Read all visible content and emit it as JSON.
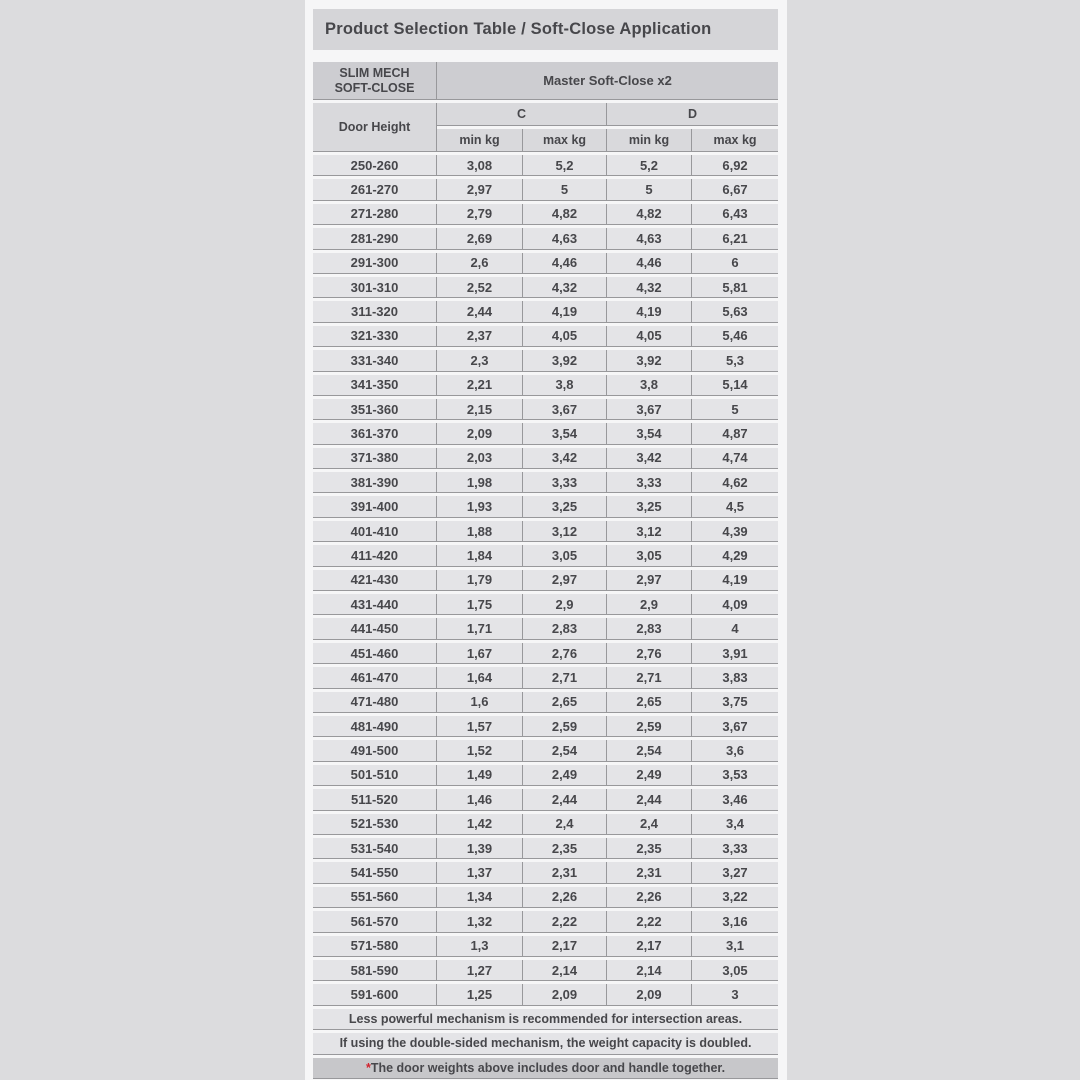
{
  "title": "Product Selection Table / Soft-Close Application",
  "header": {
    "product_line1": "SLIM MECH",
    "product_line2": "SOFT-CLOSE",
    "master_title": "Master Soft-Close x2",
    "door_height_label": "Door Height",
    "group_c_label": "C",
    "group_d_label": "D",
    "c_min_label": "min kg",
    "c_max_label": "max kg",
    "d_min_label": "min kg",
    "d_max_label": "max kg"
  },
  "table": {
    "columns": [
      "Door Height",
      "C min kg",
      "C max kg",
      "D min kg",
      "D max kg"
    ],
    "rows": [
      [
        "250-260",
        "3,08",
        "5,2",
        "5,2",
        "6,92"
      ],
      [
        "261-270",
        "2,97",
        "5",
        "5",
        "6,67"
      ],
      [
        "271-280",
        "2,79",
        "4,82",
        "4,82",
        "6,43"
      ],
      [
        "281-290",
        "2,69",
        "4,63",
        "4,63",
        "6,21"
      ],
      [
        "291-300",
        "2,6",
        "4,46",
        "4,46",
        "6"
      ],
      [
        "301-310",
        "2,52",
        "4,32",
        "4,32",
        "5,81"
      ],
      [
        "311-320",
        "2,44",
        "4,19",
        "4,19",
        "5,63"
      ],
      [
        "321-330",
        "2,37",
        "4,05",
        "4,05",
        "5,46"
      ],
      [
        "331-340",
        "2,3",
        "3,92",
        "3,92",
        "5,3"
      ],
      [
        "341-350",
        "2,21",
        "3,8",
        "3,8",
        "5,14"
      ],
      [
        "351-360",
        "2,15",
        "3,67",
        "3,67",
        "5"
      ],
      [
        "361-370",
        "2,09",
        "3,54",
        "3,54",
        "4,87"
      ],
      [
        "371-380",
        "2,03",
        "3,42",
        "3,42",
        "4,74"
      ],
      [
        "381-390",
        "1,98",
        "3,33",
        "3,33",
        "4,62"
      ],
      [
        "391-400",
        "1,93",
        "3,25",
        "3,25",
        "4,5"
      ],
      [
        "401-410",
        "1,88",
        "3,12",
        "3,12",
        "4,39"
      ],
      [
        "411-420",
        "1,84",
        "3,05",
        "3,05",
        "4,29"
      ],
      [
        "421-430",
        "1,79",
        "2,97",
        "2,97",
        "4,19"
      ],
      [
        "431-440",
        "1,75",
        "2,9",
        "2,9",
        "4,09"
      ],
      [
        "441-450",
        "1,71",
        "2,83",
        "2,83",
        "4"
      ],
      [
        "451-460",
        "1,67",
        "2,76",
        "2,76",
        "3,91"
      ],
      [
        "461-470",
        "1,64",
        "2,71",
        "2,71",
        "3,83"
      ],
      [
        "471-480",
        "1,6",
        "2,65",
        "2,65",
        "3,75"
      ],
      [
        "481-490",
        "1,57",
        "2,59",
        "2,59",
        "3,67"
      ],
      [
        "491-500",
        "1,52",
        "2,54",
        "2,54",
        "3,6"
      ],
      [
        "501-510",
        "1,49",
        "2,49",
        "2,49",
        "3,53"
      ],
      [
        "511-520",
        "1,46",
        "2,44",
        "2,44",
        "3,46"
      ],
      [
        "521-530",
        "1,42",
        "2,4",
        "2,4",
        "3,4"
      ],
      [
        "531-540",
        "1,39",
        "2,35",
        "2,35",
        "3,33"
      ],
      [
        "541-550",
        "1,37",
        "2,31",
        "2,31",
        "3,27"
      ],
      [
        "551-560",
        "1,34",
        "2,26",
        "2,26",
        "3,22"
      ],
      [
        "561-570",
        "1,32",
        "2,22",
        "2,22",
        "3,16"
      ],
      [
        "571-580",
        "1,3",
        "2,17",
        "2,17",
        "3,1"
      ],
      [
        "581-590",
        "1,27",
        "2,14",
        "2,14",
        "3,05"
      ],
      [
        "591-600",
        "1,25",
        "2,09",
        "2,09",
        "3"
      ]
    ]
  },
  "notes": {
    "note1": "Less powerful mechanism is recommended for intersection areas.",
    "note2": "If using the double-sided mechanism, the weight capacity is doubled.",
    "note3_asterisk": "*",
    "note3": "The door weights above includes door and handle together."
  },
  "colors": {
    "canvas_background": "#dcdcde",
    "page_background": "#f6f6f7",
    "title_band": "#d5d5d8",
    "header_band_dark": "#cdcdd1",
    "header_band_light": "#d9d9dc",
    "row_background": "#e4e4e7",
    "note_dark_band": "#c7c7ca",
    "grid_line": "#98989b",
    "text": "#47474b",
    "asterisk_red": "#d2232e"
  }
}
